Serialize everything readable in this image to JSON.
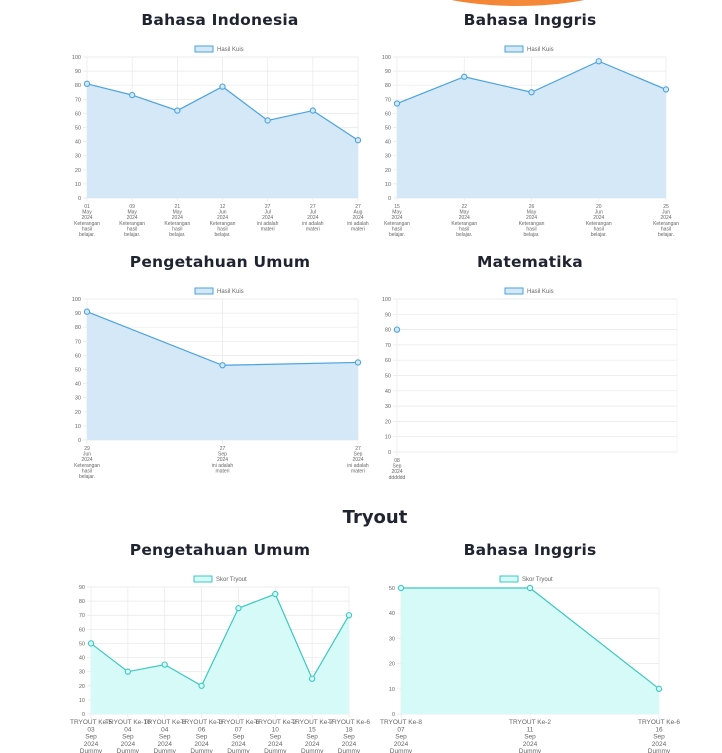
{
  "header": {
    "decoration": "orange-arc"
  },
  "quiz_section": {
    "charts": [
      {
        "title": "Bahasa Indonesia"
      },
      {
        "title": "Bahasa Inggris"
      },
      {
        "title": "Pengetahuan Umum"
      },
      {
        "title": "Matematika"
      }
    ]
  },
  "tryout_section": {
    "heading": "Tryout",
    "charts": [
      {
        "title": "Pengetahuan Umum"
      },
      {
        "title": "Bahasa Inggris"
      }
    ]
  },
  "colors": {
    "quiz_line": "#4aa3df",
    "quiz_fill": "#d4e8f8",
    "tryout_line": "#3cc8c0",
    "tryout_fill": "#d6faf8",
    "grid": "#e8e8e8",
    "tick_text": "#666666",
    "title_text": "#1f2430",
    "accent_orange": "#f07a2a"
  },
  "chart_data": [
    {
      "type": "area",
      "title": "Bahasa Indonesia",
      "legend": "Hasil Kuis",
      "categories": [
        [
          "01",
          "May",
          "2024",
          "Keterangan",
          "hasil",
          "belajar."
        ],
        [
          "09",
          "May",
          "2024",
          "Keterangan",
          "hasil",
          "belajar."
        ],
        [
          "21",
          "May",
          "2024",
          "Keterangan",
          "hasil",
          "belajar."
        ],
        [
          "12",
          "Jun",
          "2024",
          "Keterangan",
          "hasil",
          "belajar."
        ],
        [
          "27",
          "Jul",
          "2024",
          "ini adalah",
          "materi"
        ],
        [
          "27",
          "Jul",
          "2024",
          "ini adalah",
          "materi"
        ],
        [
          "27",
          "Aug",
          "2024",
          "ini adalah",
          "materi"
        ]
      ],
      "values": [
        81,
        73,
        62,
        79,
        55,
        62,
        41
      ],
      "ylim": [
        0,
        100
      ],
      "yticks": [
        0,
        10,
        20,
        30,
        40,
        50,
        60,
        70,
        80,
        90,
        100
      ],
      "grid": true,
      "legend_position": "top"
    },
    {
      "type": "area",
      "title": "Bahasa Inggris",
      "legend": "Hasil Kuis",
      "categories": [
        [
          "15",
          "May",
          "2024",
          "Keterangan",
          "hasil",
          "belajar."
        ],
        [
          "22",
          "May",
          "2024",
          "Keterangan",
          "hasil",
          "belajar."
        ],
        [
          "26",
          "May",
          "2024",
          "Keterangan",
          "hasil",
          "belajar."
        ],
        [
          "20",
          "Jun",
          "2024",
          "Keterangan",
          "hasil",
          "belajar."
        ],
        [
          "25",
          "Jun",
          "2024",
          "Keterangan",
          "hasil",
          "belajar."
        ]
      ],
      "values": [
        67,
        86,
        75,
        97,
        77
      ],
      "ylim": [
        0,
        100
      ],
      "yticks": [
        0,
        10,
        20,
        30,
        40,
        50,
        60,
        70,
        80,
        90,
        100
      ],
      "grid": true,
      "legend_position": "top"
    },
    {
      "type": "area",
      "title": "Pengetahuan Umum",
      "legend": "Hasil Kuis",
      "categories": [
        [
          "29",
          "Jun",
          "2024",
          "Keterangan",
          "hasil",
          "belajar."
        ],
        [
          "27",
          "Sep",
          "2024",
          "ini adalah",
          "materi"
        ],
        [
          "27",
          "Sep",
          "2024",
          "ini adalah",
          "materi"
        ]
      ],
      "values": [
        91,
        53,
        55
      ],
      "ylim": [
        0,
        100
      ],
      "yticks": [
        0,
        10,
        20,
        30,
        40,
        50,
        60,
        70,
        80,
        90,
        100
      ],
      "grid": true,
      "legend_position": "top"
    },
    {
      "type": "area",
      "title": "Matematika",
      "legend": "Hasil Kuis",
      "categories": [
        [
          "08",
          "Sep",
          "2024",
          "dddddd"
        ]
      ],
      "values": [
        80
      ],
      "ylim": [
        0,
        100
      ],
      "yticks": [
        0,
        10,
        20,
        30,
        40,
        50,
        60,
        70,
        80,
        90,
        100
      ],
      "grid": true,
      "legend_position": "top"
    },
    {
      "type": "area",
      "title": "Pengetahuan Umum",
      "legend": "Skor Tryout",
      "categories": [
        [
          "TRYOUT Ke-5",
          "03",
          "Sep",
          "2024",
          "Dummy"
        ],
        [
          "TRYOUT Ke-10",
          "04",
          "Sep",
          "2024",
          "Dummy"
        ],
        [
          "TRYOUT Ke-8",
          "04",
          "Sep",
          "2024",
          "Dummy"
        ],
        [
          "TRYOUT Ke-3",
          "06",
          "Sep",
          "2024",
          "Dummy"
        ],
        [
          "TRYOUT Ke-6",
          "07",
          "Sep",
          "2024",
          "Dummy"
        ],
        [
          "TRYOUT Ke-2",
          "10",
          "Sep",
          "2024",
          "Dummy"
        ],
        [
          "TRYOUT Ke-7",
          "15",
          "Sep",
          "2024",
          "Dummy"
        ],
        [
          "TRYOUT Ke-6",
          "18",
          "Sep",
          "2024",
          "Dummy"
        ]
      ],
      "values": [
        50,
        30,
        35,
        20,
        75,
        85,
        25,
        70
      ],
      "ylim": [
        0,
        90
      ],
      "yticks": [
        0,
        10,
        20,
        30,
        40,
        50,
        60,
        70,
        80,
        90
      ],
      "grid": true,
      "legend_position": "top"
    },
    {
      "type": "area",
      "title": "Bahasa Inggris",
      "legend": "Skor Tryout",
      "categories": [
        [
          "TRYOUT Ke-8",
          "07",
          "Sep",
          "2024",
          "Dummy"
        ],
        [
          "TRYOUT Ke-2",
          "11",
          "Sep",
          "2024",
          "Dummy"
        ],
        [
          "TRYOUT Ke-6",
          "16",
          "Sep",
          "2024",
          "Dummy"
        ]
      ],
      "values": [
        50,
        50,
        10
      ],
      "ylim": [
        0,
        50
      ],
      "yticks": [
        0,
        10,
        20,
        30,
        40,
        50
      ],
      "grid": true,
      "legend_position": "top"
    }
  ]
}
